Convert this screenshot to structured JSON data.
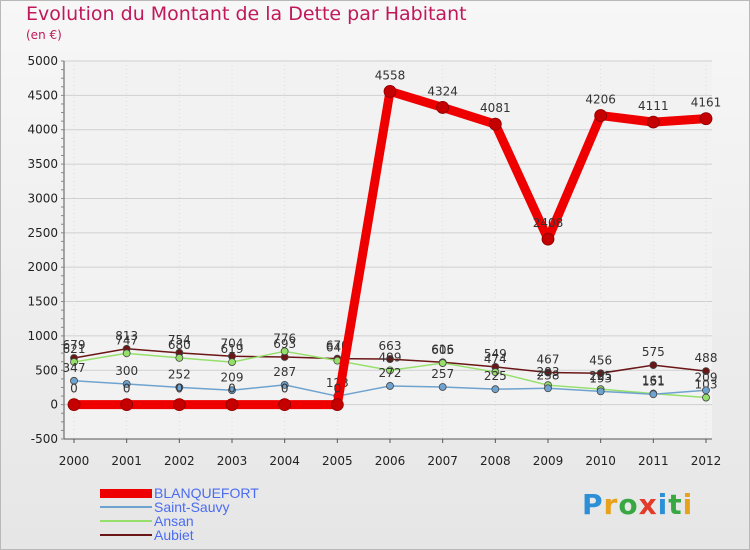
{
  "chart_data": {
    "type": "line",
    "title": "Evolution du Montant de la Dette par Habitant",
    "ylabel": "(en €)",
    "xlabel": "",
    "x": [
      "2000",
      "2001",
      "2002",
      "2003",
      "2004",
      "2005",
      "2006",
      "2007",
      "2008",
      "2009",
      "2010",
      "2011",
      "2012"
    ],
    "ylim": [
      -500,
      5000
    ],
    "yticks": [
      -500,
      0,
      500,
      1000,
      1500,
      2000,
      2500,
      3000,
      3500,
      4000,
      4500,
      5000
    ],
    "series": [
      {
        "name": "Aubiet",
        "color": "#6b1616",
        "width": 1.5,
        "values": [
          679,
          813,
          754,
          704,
          693,
          670,
          663,
          616,
          549,
          467,
          456,
          575,
          488
        ]
      },
      {
        "name": "Ansan",
        "color": "#95e06a",
        "width": 1.5,
        "values": [
          621,
          747,
          680,
          619,
          776,
          640,
          499,
          605,
          474,
          283,
          225,
          161,
          103
        ]
      },
      {
        "name": "Saint-Sauvy",
        "color": "#6fa3cf",
        "width": 1.5,
        "values": [
          347,
          300,
          252,
          209,
          287,
          123,
          272,
          257,
          225,
          238,
          193,
          151,
          209
        ]
      },
      {
        "name": "BLANQUEFORT",
        "color": "#ee0000",
        "width": 9,
        "values": [
          0,
          0,
          0,
          0,
          0,
          0,
          4558,
          4324,
          4081,
          2408,
          4206,
          4111,
          4161
        ]
      }
    ]
  },
  "legend": [
    {
      "label": "BLANQUEFORT",
      "color": "#ee0000"
    },
    {
      "label": "Saint-Sauvy",
      "color": "#6fa3cf"
    },
    {
      "label": "Ansan",
      "color": "#95e06a"
    },
    {
      "label": "Aubiet",
      "color": "#6b1616"
    }
  ],
  "logo": {
    "letters": [
      "P",
      "r",
      "o",
      "x",
      "i",
      "t",
      "i"
    ]
  }
}
